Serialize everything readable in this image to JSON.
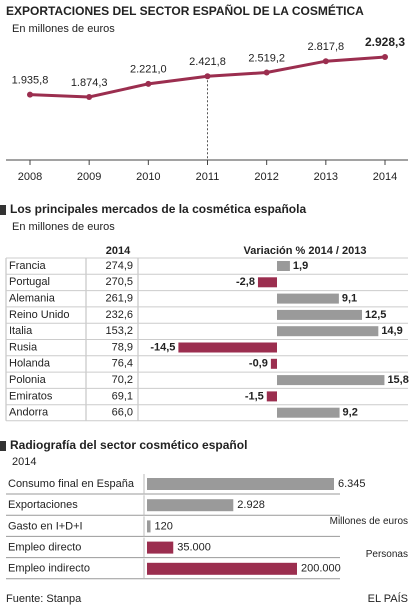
{
  "chart_data": [
    {
      "type": "line",
      "title": "EXPORTACIONES DEL SECTOR ESPAÑOL DE LA COSMÉTICA",
      "subtitle": "En millones de euros",
      "categories": [
        "2008",
        "2009",
        "2010",
        "2011",
        "2012",
        "2013",
        "2014"
      ],
      "values": [
        1935.8,
        1874.3,
        2221.0,
        2421.8,
        2519.2,
        2817.8,
        2928.3
      ],
      "value_labels": [
        "1.935,8",
        "1.874,3",
        "2.221,0",
        "2.421,8",
        "2.519,2",
        "2.817,8",
        "2.928,3"
      ],
      "color": "#9b2e4f"
    },
    {
      "type": "bar",
      "title": "Los principales mercados de la cosmética española",
      "subtitle": "En millones de euros",
      "categories": [
        "Francia",
        "Portugal",
        "Alemania",
        "Reino Unido",
        "Italia",
        "Rusia",
        "Holanda",
        "Polonia",
        "Emiratos",
        "Andorra"
      ],
      "columns": [
        {
          "name": "2014",
          "values": [
            274.9,
            270.5,
            261.9,
            232.6,
            153.2,
            78.9,
            76.4,
            70.2,
            69.1,
            66.0
          ],
          "value_labels": [
            "274,9",
            "270,5",
            "261,9",
            "232,6",
            "153,2",
            "78,9",
            "76,4",
            "70,2",
            "69,1",
            "66,0"
          ]
        }
      ],
      "series": [
        {
          "name": "Variación % 2014 / 2013",
          "color": "#9a9a9a",
          "negative_color": "#9b2e4f",
          "values": [
            1.9,
            -2.8,
            9.1,
            12.5,
            14.9,
            -14.5,
            -0.9,
            15.8,
            -1.5,
            9.2
          ],
          "value_labels": [
            "1,9",
            "-2,8",
            "9,1",
            "12,5",
            "14,9",
            "-14,5",
            "-0,9",
            "15,8",
            "-1,5",
            "9,2"
          ]
        }
      ]
    },
    {
      "type": "bar",
      "title": "Radiografía del sector cosmético español",
      "subtitle": "2014",
      "categories": [
        "Consumo final en España",
        "Exportaciones",
        "Gasto en I+D+I",
        "Empleo directo",
        "Empleo indirecto"
      ],
      "series": [
        {
          "name": "Millones de euros",
          "color": "#9a9a9a",
          "values": [
            6345,
            2928,
            120,
            null,
            null
          ],
          "value_labels": [
            "6.345",
            "2.928",
            "120",
            null,
            null
          ]
        },
        {
          "name": "Personas",
          "color": "#9b2e4f",
          "values": [
            null,
            null,
            null,
            35000,
            200000
          ],
          "value_labels": [
            null,
            null,
            null,
            "35.000",
            "200.000"
          ]
        }
      ]
    }
  ],
  "footer": {
    "source": "Fuente: Stanpa",
    "brand": "EL PAÍS"
  }
}
